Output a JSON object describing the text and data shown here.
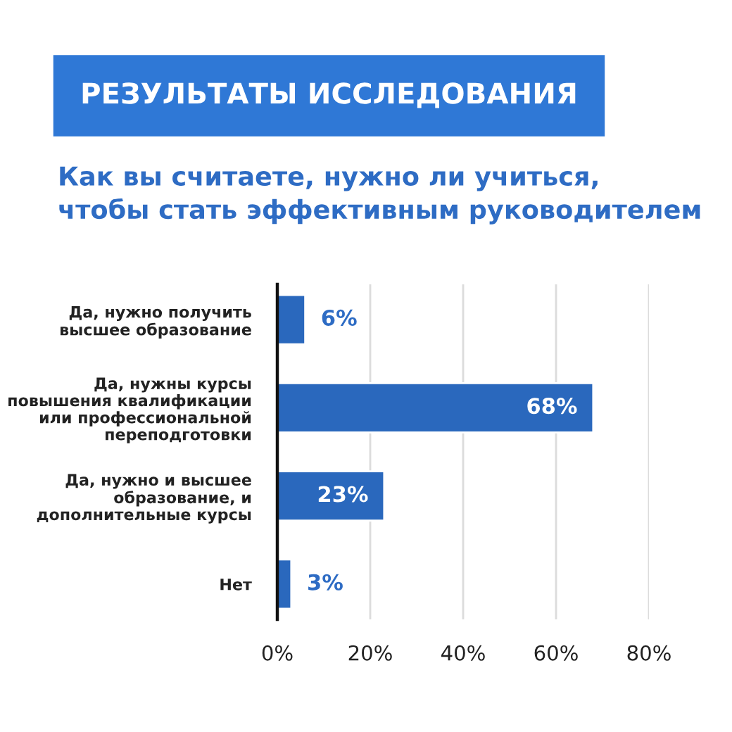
{
  "chart_data": {
    "type": "bar",
    "orientation": "horizontal",
    "title": "РЕЗУЛЬТАТЫ ИССЛЕДОВАНИЯ",
    "subtitle": "Как вы считаете, нужно ли учиться,\nчтобы стать эффективным руководителем",
    "categories": [
      "Да, нужно получить\nвысшее образование",
      "Да, нужны курсы\nповышения квалификации\nили профессиональной\nпереподготовки",
      "Да, нужно и высшее\nобразование, и\nдополнительные курсы",
      "Нет"
    ],
    "values": [
      6,
      68,
      23,
      3
    ],
    "value_labels": [
      "6%",
      "68%",
      "23%",
      "3%"
    ],
    "color": "#2a68bd",
    "xlim": [
      0,
      80
    ],
    "xticks": [
      {
        "value": 0,
        "label": "0%"
      },
      {
        "value": 20,
        "label": "20%"
      },
      {
        "value": 40,
        "label": "40%"
      },
      {
        "value": 60,
        "label": "60%"
      },
      {
        "value": 80,
        "label": "80%"
      }
    ],
    "grid": "x"
  }
}
